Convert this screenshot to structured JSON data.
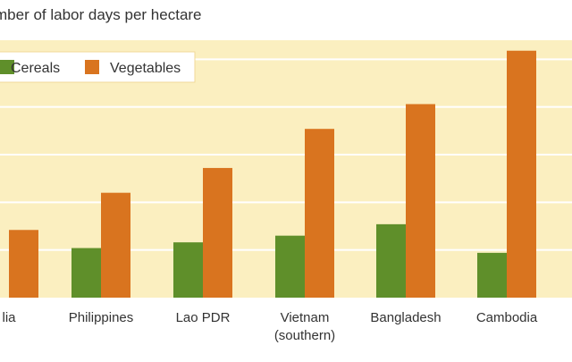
{
  "chart_data": {
    "type": "bar",
    "title": "mber of labor days per hectare",
    "ylabel": "",
    "xlabel": "",
    "categories": [
      [
        "lia"
      ],
      [
        "Philippines"
      ],
      [
        "Lao PDR"
      ],
      [
        "Vietnam",
        "(southern)"
      ],
      [
        "Bangladesh"
      ],
      [
        "Cambodia"
      ]
    ],
    "series": [
      {
        "name": "Cereals",
        "color": "#5f8f2a",
        "values": [
          0,
          52,
          58,
          65,
          77,
          47
        ]
      },
      {
        "name": "Vegetables",
        "color": "#d9741f",
        "values": [
          71,
          110,
          136,
          177,
          203,
          259
        ]
      }
    ],
    "ylim": [
      0,
      270
    ],
    "grid": true,
    "legend_position": "top-left",
    "plot_background": "#fbefc0",
    "grid_color": "#ffffff"
  }
}
